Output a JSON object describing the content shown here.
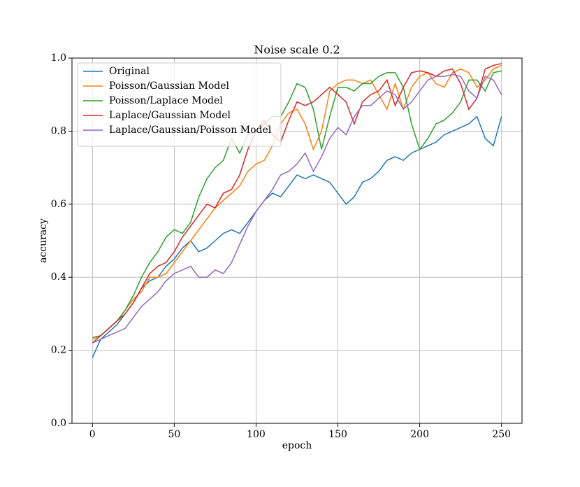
{
  "chart_data": {
    "type": "line",
    "title": "Noise scale 0.2",
    "xlabel": "epoch",
    "ylabel": "accuracy",
    "x": [
      0,
      5,
      10,
      15,
      20,
      25,
      30,
      35,
      40,
      45,
      50,
      55,
      60,
      65,
      70,
      75,
      80,
      85,
      90,
      95,
      100,
      105,
      110,
      115,
      120,
      125,
      130,
      135,
      140,
      145,
      150,
      155,
      160,
      165,
      170,
      175,
      180,
      185,
      190,
      195,
      200,
      205,
      210,
      215,
      220,
      225,
      230,
      235,
      240,
      245,
      250
    ],
    "series": [
      {
        "name": "Original",
        "color": "#1f77b4",
        "values": [
          0.18,
          0.23,
          0.25,
          0.27,
          0.3,
          0.33,
          0.37,
          0.39,
          0.4,
          0.43,
          0.45,
          0.48,
          0.5,
          0.47,
          0.48,
          0.5,
          0.52,
          0.53,
          0.52,
          0.55,
          0.58,
          0.61,
          0.63,
          0.62,
          0.65,
          0.68,
          0.67,
          0.68,
          0.67,
          0.66,
          0.63,
          0.6,
          0.62,
          0.66,
          0.67,
          0.69,
          0.72,
          0.73,
          0.72,
          0.74,
          0.75,
          0.76,
          0.77,
          0.79,
          0.8,
          0.81,
          0.82,
          0.84,
          0.78,
          0.76,
          0.84
        ]
      },
      {
        "name": "Poisson/Gaussian Model",
        "color": "#ff7f0e",
        "values": [
          0.23,
          0.24,
          0.26,
          0.28,
          0.31,
          0.34,
          0.36,
          0.4,
          0.4,
          0.41,
          0.44,
          0.47,
          0.5,
          0.53,
          0.56,
          0.59,
          0.61,
          0.63,
          0.65,
          0.69,
          0.71,
          0.72,
          0.76,
          0.82,
          0.85,
          0.86,
          0.82,
          0.75,
          0.8,
          0.91,
          0.93,
          0.94,
          0.94,
          0.93,
          0.94,
          0.9,
          0.86,
          0.93,
          0.86,
          0.92,
          0.95,
          0.96,
          0.93,
          0.92,
          0.96,
          0.97,
          0.96,
          0.92,
          0.94,
          0.97,
          0.98
        ]
      },
      {
        "name": "Poisson/Laplace Model",
        "color": "#2ca02c",
        "values": [
          0.235,
          0.24,
          0.26,
          0.28,
          0.31,
          0.35,
          0.4,
          0.44,
          0.47,
          0.51,
          0.53,
          0.52,
          0.55,
          0.62,
          0.67,
          0.7,
          0.72,
          0.78,
          0.74,
          0.79,
          0.8,
          0.82,
          0.84,
          0.84,
          0.88,
          0.93,
          0.92,
          0.86,
          0.75,
          0.84,
          0.92,
          0.92,
          0.91,
          0.93,
          0.93,
          0.95,
          0.96,
          0.96,
          0.92,
          0.82,
          0.75,
          0.78,
          0.82,
          0.83,
          0.85,
          0.88,
          0.94,
          0.94,
          0.91,
          0.96,
          0.965
        ]
      },
      {
        "name": "Laplace/Gaussian Model",
        "color": "#d62728",
        "values": [
          0.22,
          0.24,
          0.26,
          0.28,
          0.3,
          0.33,
          0.37,
          0.41,
          0.43,
          0.44,
          0.47,
          0.51,
          0.54,
          0.57,
          0.6,
          0.59,
          0.63,
          0.64,
          0.68,
          0.75,
          0.8,
          0.83,
          0.79,
          0.77,
          0.83,
          0.88,
          0.87,
          0.88,
          0.9,
          0.92,
          0.9,
          0.88,
          0.82,
          0.88,
          0.9,
          0.91,
          0.94,
          0.87,
          0.92,
          0.96,
          0.965,
          0.96,
          0.95,
          0.965,
          0.97,
          0.93,
          0.86,
          0.89,
          0.97,
          0.98,
          0.985
        ]
      },
      {
        "name": "Laplace/Gaussian/Poisson Model",
        "color": "#9467bd",
        "values": [
          0.22,
          0.23,
          0.24,
          0.25,
          0.26,
          0.29,
          0.32,
          0.34,
          0.36,
          0.39,
          0.41,
          0.42,
          0.43,
          0.4,
          0.4,
          0.42,
          0.41,
          0.44,
          0.49,
          0.54,
          0.58,
          0.61,
          0.64,
          0.68,
          0.69,
          0.71,
          0.74,
          0.69,
          0.73,
          0.78,
          0.81,
          0.79,
          0.84,
          0.87,
          0.87,
          0.89,
          0.91,
          0.9,
          0.86,
          0.88,
          0.91,
          0.94,
          0.95,
          0.95,
          0.955,
          0.95,
          0.91,
          0.89,
          0.95,
          0.94,
          0.9
        ]
      }
    ],
    "xlim": [
      -12.5,
      262.5
    ],
    "xticks": [
      0,
      50,
      100,
      150,
      200,
      250
    ],
    "ylim": [
      0,
      1
    ],
    "yticks": [
      {
        "value": 0,
        "label": "0.0"
      },
      0.2,
      0.4,
      0.6,
      0.8,
      {
        "value": 1,
        "label": "1.0"
      }
    ],
    "grid": true,
    "legend": "upper left"
  }
}
